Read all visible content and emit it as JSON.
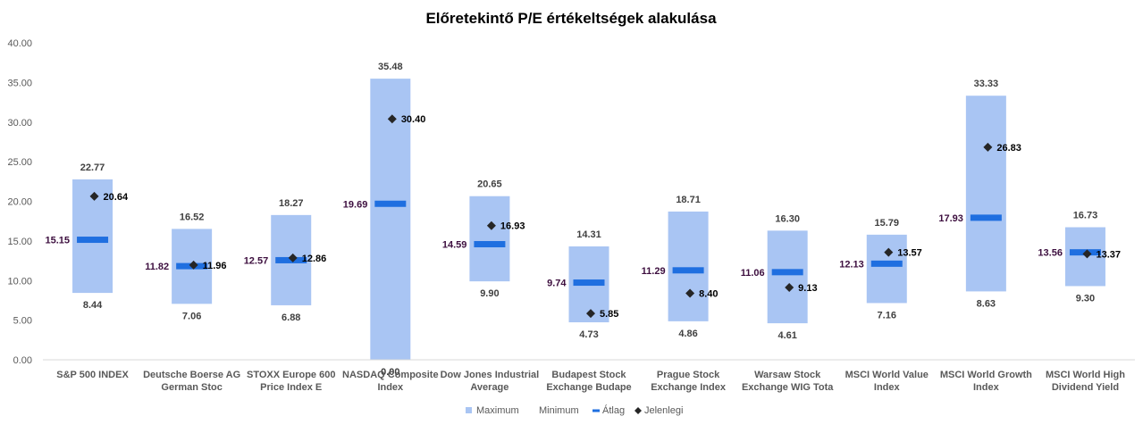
{
  "chart_data": {
    "type": "range-bar",
    "title": "Előretekintő P/E értékeltségek alakulása",
    "ylim": [
      0,
      40
    ],
    "yticks": [
      "0.00",
      "5.00",
      "10.00",
      "15.00",
      "20.00",
      "25.00",
      "30.00",
      "35.00",
      "40.00"
    ],
    "categories": [
      [
        "S&P 500 INDEX"
      ],
      [
        "Deutsche Boerse AG",
        "German Stoc"
      ],
      [
        "STOXX Europe 600",
        "Price Index E"
      ],
      [
        "NASDAQ Composite",
        "Index"
      ],
      [
        "Dow Jones Industrial",
        "Average"
      ],
      [
        "Budapest Stock",
        "Exchange Budape"
      ],
      [
        "Prague Stock",
        "Exchange Index"
      ],
      [
        "Warsaw Stock",
        "Exchange WIG Tota"
      ],
      [
        "MSCI World Value",
        "Index"
      ],
      [
        "MSCI World Growth",
        "Index"
      ],
      [
        "MSCI World High",
        "Dividend Yield"
      ]
    ],
    "series": [
      {
        "name": "Maximum",
        "values": [
          22.77,
          16.52,
          18.27,
          35.48,
          20.65,
          14.31,
          18.71,
          16.3,
          15.79,
          33.33,
          16.73
        ],
        "labels": [
          "22.77",
          "16.52",
          "18.27",
          "35.48",
          "20.65",
          "14.31",
          "18.71",
          "16.30",
          "15.79",
          "33.33",
          "16.73"
        ]
      },
      {
        "name": "Minimum",
        "values": [
          8.44,
          7.06,
          6.88,
          0.0,
          9.9,
          4.73,
          4.86,
          4.61,
          7.16,
          8.63,
          9.3
        ],
        "labels": [
          "8.44",
          "7.06",
          "6.88",
          "0.00",
          "9.90",
          "4.73",
          "4.86",
          "4.61",
          "7.16",
          "8.63",
          "9.30"
        ]
      },
      {
        "name": "Átlag",
        "values": [
          15.15,
          11.82,
          12.57,
          19.69,
          14.59,
          9.74,
          11.29,
          11.06,
          12.13,
          17.93,
          13.56
        ],
        "labels": [
          "15.15",
          "11.82",
          "12.57",
          "19.69",
          "14.59",
          "9.74",
          "11.29",
          "11.06",
          "12.13",
          "17.93",
          "13.56"
        ]
      },
      {
        "name": "Jelenlegi",
        "values": [
          20.64,
          11.96,
          12.86,
          30.4,
          16.93,
          5.85,
          8.4,
          9.13,
          13.57,
          26.83,
          13.37
        ],
        "labels": [
          "20.64",
          "11.96",
          "12.86",
          "30.40",
          "16.93",
          "5.85",
          "8.40",
          "9.13",
          "13.57",
          "26.83",
          "13.37"
        ]
      }
    ],
    "colors": {
      "range": "#a9c5f3",
      "avg": "#1f6fe0",
      "current": "#262626",
      "avg_label": "#3d0f3f"
    },
    "legend": {
      "position": "bottom",
      "items": [
        "Maximum",
        "Minimum",
        "Átlag",
        "Jelenlegi"
      ]
    },
    "grid": false
  }
}
